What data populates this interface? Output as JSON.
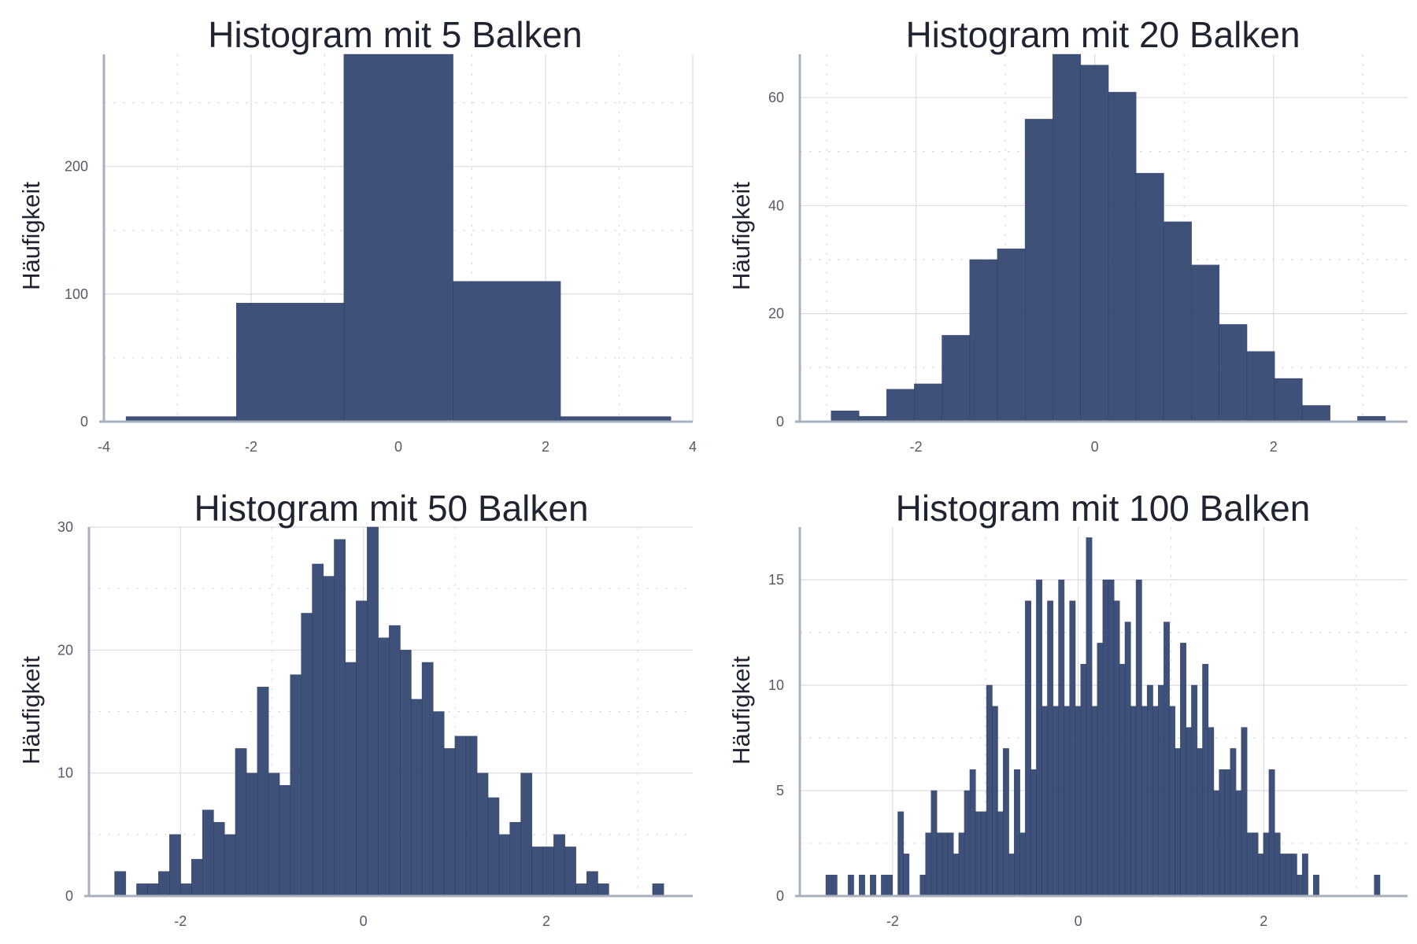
{
  "chart_data": [
    {
      "type": "bar",
      "title": "Histogram mit 5 Balken",
      "xlabel": "",
      "ylabel": "Häufigkeit",
      "xlim": [
        -4,
        4
      ],
      "ylim": [
        0,
        288
      ],
      "x_ticks": [
        "-4",
        "-2",
        "0",
        "2",
        "4"
      ],
      "y_ticks": [
        "0",
        "100",
        "200"
      ],
      "grid": true,
      "bar_color": "#31446f",
      "bins": [
        {
          "x0": -3.7,
          "x1": -2.2,
          "value": 4
        },
        {
          "x0": -2.2,
          "x1": -0.74,
          "value": 93
        },
        {
          "x0": -0.74,
          "x1": 0.74,
          "value": 288
        },
        {
          "x0": 0.74,
          "x1": 2.2,
          "value": 110
        },
        {
          "x0": 2.2,
          "x1": 3.7,
          "value": 4
        }
      ]
    },
    {
      "type": "bar",
      "title": "Histogram mit 20 Balken",
      "xlabel": "",
      "ylabel": "Häufigkeit",
      "xlim": [
        -3.3,
        3.5
      ],
      "ylim": [
        0,
        68
      ],
      "x_ticks": [
        "-2",
        "0",
        "2"
      ],
      "y_ticks": [
        "0",
        "20",
        "40",
        "60"
      ],
      "grid": true,
      "bar_color": "#31446f",
      "bin_start": -2.95,
      "bin_width": 0.31,
      "values": [
        2,
        1,
        6,
        7,
        16,
        30,
        32,
        56,
        68,
        66,
        61,
        46,
        37,
        29,
        18,
        13,
        8,
        3,
        0,
        1
      ]
    },
    {
      "type": "bar",
      "title": "Histogram mit 50 Balken",
      "xlabel": "",
      "ylabel": "Häufigkeit",
      "xlim": [
        -3.0,
        3.6
      ],
      "ylim": [
        0,
        30
      ],
      "x_ticks": [
        "-2",
        "0",
        "2"
      ],
      "y_ticks": [
        "0",
        "10",
        "20",
        "30"
      ],
      "grid": true,
      "bar_color": "#31446f",
      "bin_start": -2.72,
      "bin_width": 0.12,
      "values": [
        2,
        0,
        1,
        1,
        2,
        5,
        1,
        3,
        7,
        6,
        5,
        12,
        10,
        17,
        10,
        9,
        18,
        23,
        27,
        26,
        29,
        19,
        24,
        30,
        21,
        22,
        20,
        16,
        19,
        15,
        12,
        13,
        13,
        10,
        8,
        5,
        6,
        10,
        4,
        4,
        5,
        4,
        1,
        2,
        1,
        0,
        0,
        0,
        0,
        1
      ]
    },
    {
      "type": "bar",
      "title": "Histogram mit 100 Balken",
      "xlabel": "",
      "ylabel": "Häufigkeit",
      "xlim": [
        -3.0,
        3.55
      ],
      "ylim": [
        0,
        17.5
      ],
      "x_ticks": [
        "-2",
        "0",
        "2"
      ],
      "y_ticks": [
        "0",
        "5",
        "10",
        "15"
      ],
      "grid": true,
      "bar_color": "#31446f",
      "bin_start": -2.72,
      "bin_width": 0.0597,
      "values": [
        1,
        1,
        0,
        0,
        1,
        0,
        1,
        0,
        1,
        0,
        1,
        1,
        0,
        4,
        2,
        0,
        0,
        1,
        3,
        5,
        3,
        3,
        3,
        2,
        3,
        5,
        6,
        4,
        4,
        10,
        9,
        4,
        7,
        2,
        6,
        3,
        14,
        6,
        15,
        9,
        14,
        9,
        15,
        9,
        14,
        9,
        11,
        17,
        9,
        12,
        15,
        15,
        14,
        11,
        13,
        9,
        15,
        9,
        10,
        9,
        10,
        13,
        9,
        7,
        12,
        8,
        10,
        7,
        11,
        8,
        5,
        6,
        6,
        7,
        5,
        8,
        3,
        3,
        2,
        3,
        6,
        3,
        2,
        2,
        2,
        1,
        2,
        0,
        1,
        0,
        0,
        0,
        0,
        0,
        0,
        0,
        0,
        0,
        0,
        1
      ]
    }
  ]
}
